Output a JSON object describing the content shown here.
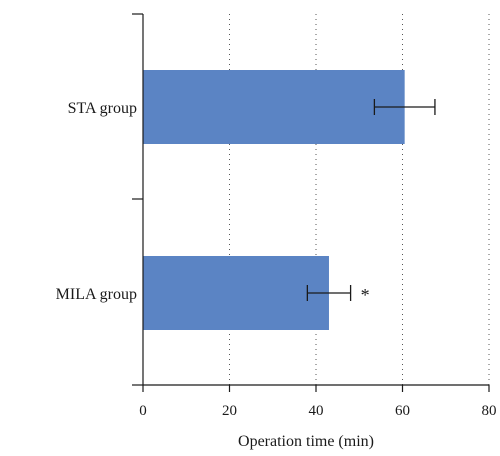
{
  "chart_data": {
    "type": "bar",
    "orientation": "horizontal",
    "categories": [
      "STA group",
      "MILA group"
    ],
    "values": [
      60.5,
      43
    ],
    "errors": [
      7,
      5
    ],
    "annotations": [
      "",
      "*"
    ],
    "xlabel": "Operation time (min)",
    "ylabel": "",
    "xlim": [
      0,
      80
    ],
    "xticks": [
      0,
      20,
      40,
      60,
      80
    ],
    "grid": "vertical dotted",
    "bar_color": "#5b84c4"
  }
}
